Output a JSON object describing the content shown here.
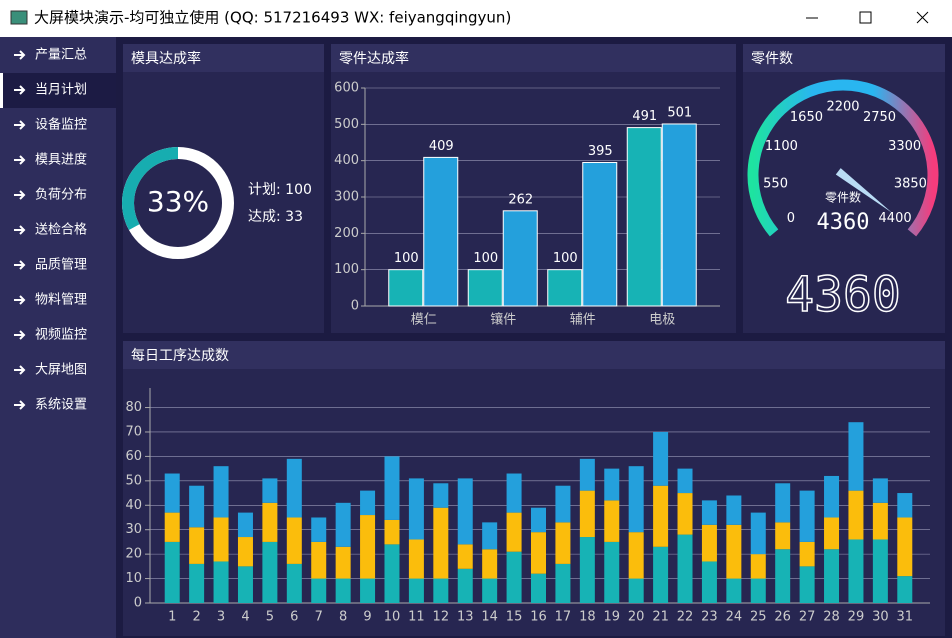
{
  "window": {
    "title": "大屏模块演示-均可独立使用 (QQ: 517216493  WX: feiyangqingyun)"
  },
  "menu": {
    "items": [
      "产量汇总",
      "当月计划",
      "设备监控",
      "模具进度",
      "负荷分布",
      "送检合格",
      "品质管理",
      "物料管理",
      "视频监控",
      "大屏地图",
      "系统设置"
    ],
    "selected": 1
  },
  "chart_data": [
    {
      "type": "donut",
      "title": "模具达成率",
      "value": 33,
      "value_label": "33%",
      "total": 100,
      "labels": [
        "计划: 100",
        "达成: 33"
      ],
      "color": "#17adb0",
      "rest_color": "#ffffff"
    },
    {
      "type": "bar",
      "title": "零件达成率",
      "categories": [
        "模仁",
        "镶件",
        "辅件",
        "电极"
      ],
      "series": [
        {
          "color": "#17b3b5",
          "values": [
            100,
            100,
            100,
            491
          ]
        },
        {
          "color": "#24a0dc",
          "values": [
            409,
            262,
            395,
            501
          ]
        }
      ],
      "ylim": [
        0,
        600
      ],
      "yticks": [
        0,
        100,
        200,
        300,
        400,
        500,
        600
      ],
      "grid": true
    },
    {
      "type": "gauge",
      "title": "零件数",
      "label": "零件数",
      "value": 4360,
      "lim": [
        0,
        4400
      ],
      "ticks": [
        0,
        550,
        1100,
        1650,
        2200,
        2750,
        3300,
        3850,
        4400
      ],
      "colors": [
        "#1ee3a0",
        "#29b6f0",
        "#29b6f0",
        "#f53c7c"
      ]
    },
    {
      "type": "stacked-bar",
      "title": "每日工序达成数",
      "categories": [
        "1",
        "2",
        "3",
        "4",
        "5",
        "6",
        "7",
        "8",
        "9",
        "10",
        "11",
        "12",
        "13",
        "14",
        "15",
        "16",
        "17",
        "18",
        "19",
        "20",
        "21",
        "22",
        "23",
        "24",
        "25",
        "26",
        "27",
        "28",
        "29",
        "30",
        "31"
      ],
      "series": [
        {
          "color": "#17b3b5",
          "values": [
            25,
            16,
            17,
            15,
            25,
            16,
            10,
            10,
            10,
            24,
            10,
            10,
            14,
            10,
            21,
            12,
            16,
            27,
            25,
            10,
            23,
            28,
            17,
            10,
            10,
            22,
            15,
            22,
            26,
            26,
            11
          ]
        },
        {
          "color": "#fbbd0c",
          "values": [
            12,
            15,
            18,
            12,
            16,
            19,
            15,
            13,
            26,
            10,
            16,
            29,
            10,
            12,
            16,
            17,
            17,
            19,
            17,
            19,
            25,
            17,
            15,
            22,
            10,
            11,
            10,
            13,
            20,
            15,
            24
          ]
        },
        {
          "color": "#24a0dc",
          "values": [
            16,
            17,
            21,
            10,
            10,
            24,
            10,
            18,
            10,
            26,
            25,
            10,
            27,
            11,
            16,
            10,
            15,
            13,
            13,
            27,
            22,
            10,
            10,
            12,
            17,
            16,
            21,
            17,
            28,
            10,
            10
          ]
        }
      ],
      "ylim": [
        0,
        88
      ],
      "yticks": [
        0,
        10,
        20,
        30,
        40,
        50,
        60,
        70,
        80
      ],
      "grid": true
    }
  ]
}
